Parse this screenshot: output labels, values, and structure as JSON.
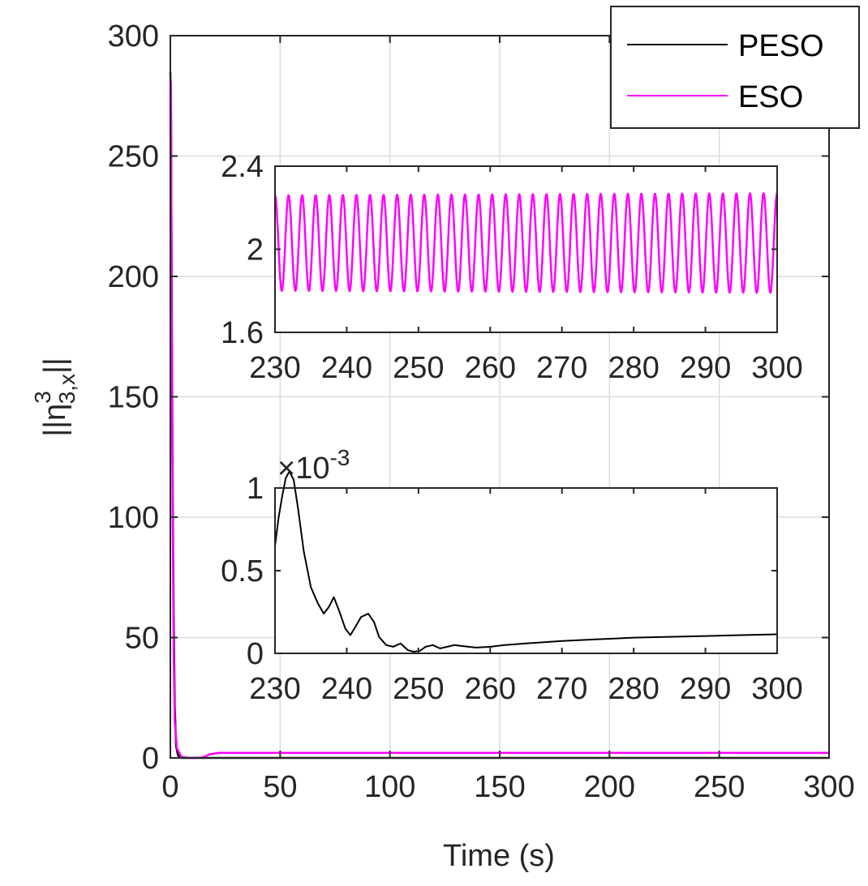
{
  "colors": {
    "peso": "#000000",
    "eso": "#ff00ff",
    "grid": "#dcdcdc",
    "axis": "#262626"
  },
  "chart_data": [
    {
      "id": "main",
      "type": "line",
      "xlabel": "Time (s)",
      "ylabel_base": "||η",
      "ylabel_sup": "3",
      "ylabel_sub": "3,x",
      "ylabel_end": "||",
      "xlim": [
        0,
        300
      ],
      "ylim": [
        0,
        300
      ],
      "xticks": [
        0,
        50,
        100,
        150,
        200,
        250,
        300
      ],
      "yticks": [
        0,
        50,
        100,
        150,
        200,
        250,
        300
      ],
      "grid": true,
      "legend": {
        "position": "top-right",
        "entries": [
          "PESO",
          "ESO"
        ]
      },
      "series": [
        {
          "name": "PESO",
          "color": "#000000",
          "points": [
            [
              0,
              285
            ],
            [
              0.3,
              270
            ],
            [
              0.6,
              200
            ],
            [
              1,
              120
            ],
            [
              1.5,
              60
            ],
            [
              2,
              22
            ],
            [
              2.6,
              5
            ],
            [
              3.5,
              1
            ],
            [
              5,
              0
            ],
            [
              300,
              0
            ]
          ]
        },
        {
          "name": "ESO",
          "color": "#ff00ff",
          "points": [
            [
              0,
              283
            ],
            [
              0.3,
              280
            ],
            [
              0.6,
              190
            ],
            [
              1,
              110
            ],
            [
              1.5,
              45
            ],
            [
              2,
              15
            ],
            [
              3,
              4
            ],
            [
              5,
              0.5
            ],
            [
              8,
              0
            ],
            [
              12,
              0
            ],
            [
              15,
              0.3
            ],
            [
              18,
              1.5
            ],
            [
              22,
              2.1
            ],
            [
              300,
              2.1
            ]
          ]
        }
      ]
    },
    {
      "id": "inset-eso",
      "type": "line",
      "xlim": [
        230,
        300
      ],
      "ylim": [
        1.6,
        2.4
      ],
      "xticks": [
        230,
        240,
        250,
        260,
        270,
        280,
        290,
        300
      ],
      "yticks": [
        1.6,
        2,
        2.4
      ],
      "ytick_labels": [
        "1.6",
        "2",
        "2.4"
      ],
      "series": [
        {
          "name": "ESO",
          "color": "#ff00ff",
          "description": "sinusoidal oscillation",
          "mean": 2.03,
          "amplitude": 0.23,
          "periods": 37,
          "x_start": 230,
          "x_end": 300
        }
      ]
    },
    {
      "id": "inset-peso",
      "type": "line",
      "xlim": [
        230,
        300
      ],
      "ylim": [
        0,
        1
      ],
      "xticks": [
        230,
        240,
        250,
        260,
        270,
        280,
        290,
        300
      ],
      "yticks": [
        0,
        0.5,
        1
      ],
      "ytick_labels": [
        "0",
        "0.5",
        "1"
      ],
      "exponent_label": "×10",
      "exponent_power": "-3",
      "series": [
        {
          "name": "PESO",
          "color": "#000000",
          "points": [
            [
              230,
              0.65
            ],
            [
              230.5,
              0.82
            ],
            [
              231,
              0.95
            ],
            [
              231.5,
              1.06
            ],
            [
              232,
              1.1
            ],
            [
              232.6,
              1.05
            ],
            [
              233.2,
              0.88
            ],
            [
              234,
              0.62
            ],
            [
              235,
              0.4
            ],
            [
              236,
              0.3
            ],
            [
              236.8,
              0.24
            ],
            [
              237.5,
              0.28
            ],
            [
              238.2,
              0.34
            ],
            [
              239,
              0.25
            ],
            [
              239.8,
              0.15
            ],
            [
              240.5,
              0.11
            ],
            [
              241.2,
              0.16
            ],
            [
              242,
              0.22
            ],
            [
              243,
              0.24
            ],
            [
              243.8,
              0.19
            ],
            [
              244.5,
              0.1
            ],
            [
              245.5,
              0.05
            ],
            [
              246.5,
              0.04
            ],
            [
              247.5,
              0.06
            ],
            [
              248.5,
              0.02
            ],
            [
              249.3,
              0.01
            ],
            [
              250.2,
              0.015
            ],
            [
              251,
              0.04
            ],
            [
              252,
              0.05
            ],
            [
              253,
              0.03
            ],
            [
              254,
              0.04
            ],
            [
              255,
              0.05
            ],
            [
              256,
              0.045
            ],
            [
              258,
              0.035
            ],
            [
              260,
              0.04
            ],
            [
              262,
              0.05
            ],
            [
              265,
              0.06
            ],
            [
              270,
              0.075
            ],
            [
              275,
              0.085
            ],
            [
              280,
              0.095
            ],
            [
              285,
              0.1
            ],
            [
              290,
              0.105
            ],
            [
              295,
              0.11
            ],
            [
              300,
              0.115
            ]
          ]
        }
      ]
    }
  ]
}
